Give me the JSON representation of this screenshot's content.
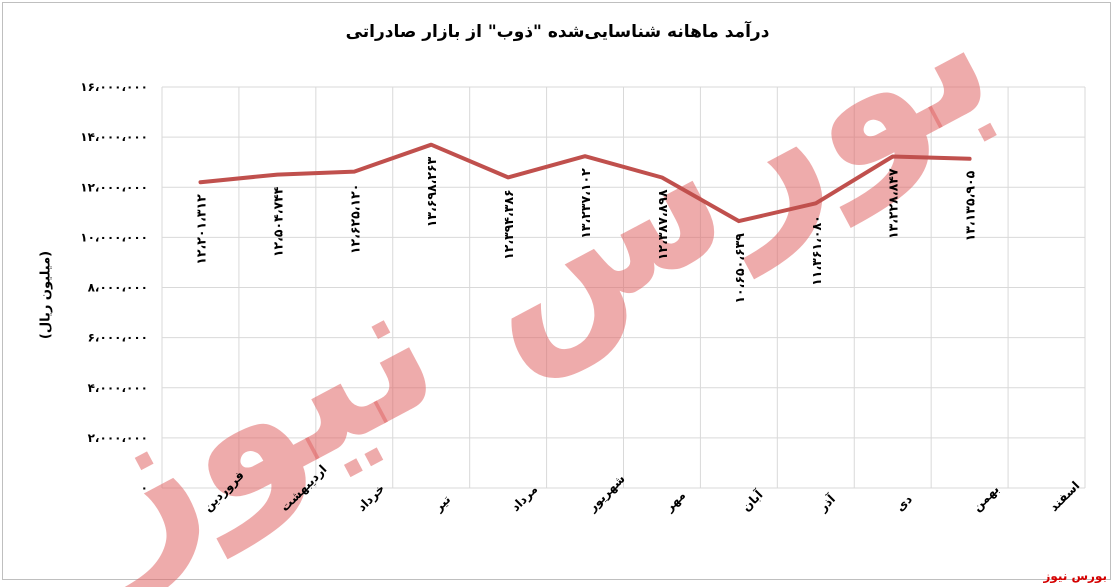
{
  "chart_data": {
    "type": "line",
    "title": "درآمد ماهانه شناسایی‌شده \"ذوب\" از بازار صادراتی",
    "xlabel": "",
    "ylabel": "(میلیون ریال)",
    "categories": [
      "فروردین",
      "اردیبهشت",
      "خرداد",
      "تیر",
      "مرداد",
      "شهریور",
      "مهر",
      "آبان",
      "آذر",
      "دی",
      "بهمن",
      "اسفند"
    ],
    "series": [
      {
        "values": [
          12201312,
          12504744,
          12625120,
          13698263,
          12394386,
          13237102,
          12387898,
          10650639,
          11361080,
          13228847,
          13135905,
          null
        ],
        "labels": [
          "۱۲،۲۰۱،۳۱۲",
          "۱۲،۵۰۴،۷۴۴",
          "۱۲،۶۲۵،۱۲۰",
          "۱۳،۶۹۸،۲۶۳",
          "۱۲،۳۹۴،۳۸۶",
          "۱۳،۲۳۷،۱۰۲",
          "۱۲،۳۸۷،۸۹۸",
          "۱۰،۶۵۰،۶۳۹",
          "۱۱،۳۶۱،۰۸۰",
          "۱۳،۲۲۸،۸۴۷",
          "۱۳،۱۳۵،۹۰۵",
          ""
        ]
      }
    ],
    "ylim": [
      0,
      16000000
    ],
    "yticks": [
      0,
      2000000,
      4000000,
      6000000,
      8000000,
      10000000,
      12000000,
      14000000,
      16000000
    ],
    "ytick_labels": [
      "۰",
      "۲،۰۰۰،۰۰۰",
      "۴،۰۰۰،۰۰۰",
      "۶،۰۰۰،۰۰۰",
      "۸،۰۰۰،۰۰۰",
      "۱۰،۰۰۰،۰۰۰",
      "۱۲،۰۰۰،۰۰۰",
      "۱۴،۰۰۰،۰۰۰",
      "۱۶،۰۰۰،۰۰۰"
    ],
    "grid": true,
    "legend": "none",
    "line_color": "#c0504d",
    "grid_color": "#d9d9d9"
  },
  "watermark": {
    "text": "بورس نیوز",
    "color": "#e06666"
  },
  "source": "بورس نیوز"
}
